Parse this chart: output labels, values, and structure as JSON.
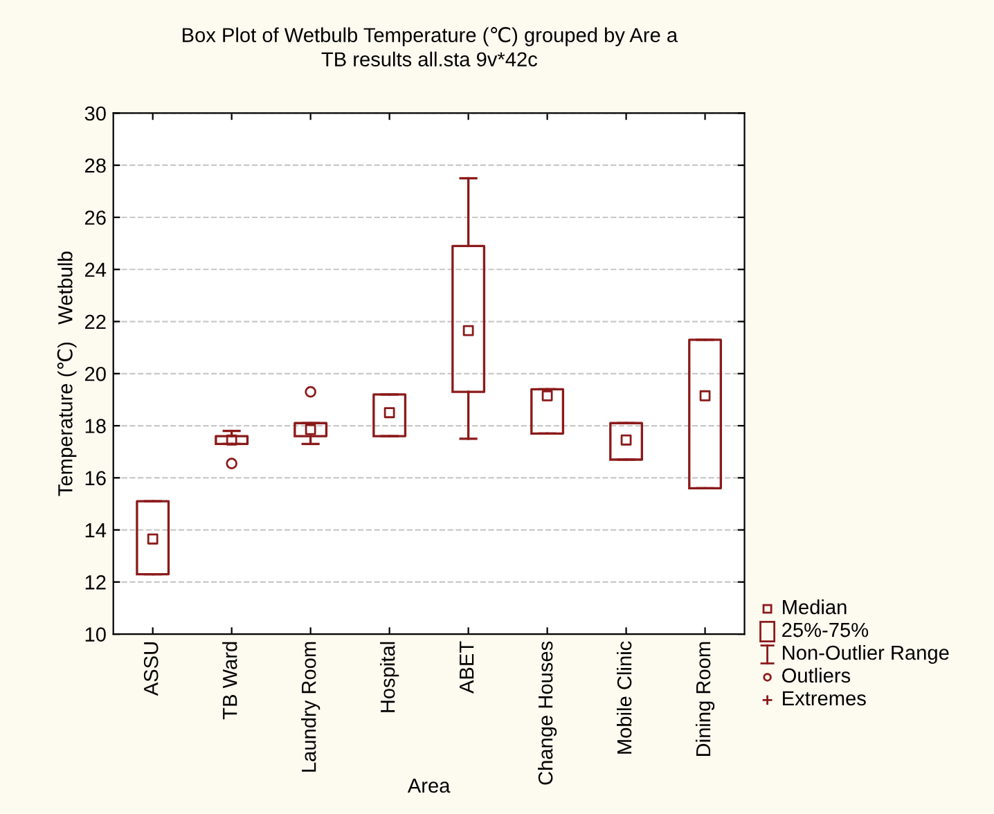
{
  "chart_data": {
    "type": "box",
    "title": "Box Plot of Wetbulb Temperature (℃) grouped by Are a",
    "subtitle": "TB results all.sta 9v*42c",
    "xlabel": "Area",
    "ylabel": "Temperature (℃)   Wetbulb",
    "categories": [
      "ASSU",
      "TB Ward",
      "Laundry Room",
      "Hospital",
      "ABET",
      "Change Houses",
      "Mobile Clinic",
      "Dining Room"
    ],
    "color": "#8b1a1a",
    "boxes": [
      {
        "low": 12.3,
        "q1": 12.3,
        "median": 13.65,
        "q3": 15.1,
        "high": 15.1
      },
      {
        "low": 17.3,
        "q1": 17.3,
        "median": 17.45,
        "q3": 17.6,
        "high": 17.8,
        "outliers": [
          16.55
        ]
      },
      {
        "low": 17.3,
        "q1": 17.6,
        "median": 17.85,
        "q3": 18.1,
        "high": 18.1,
        "outliers": [
          19.3
        ]
      },
      {
        "low": 17.6,
        "q1": 17.6,
        "median": 18.5,
        "q3": 19.2,
        "high": 19.2
      },
      {
        "low": 17.5,
        "q1": 19.3,
        "median": 21.65,
        "q3": 24.9,
        "high": 27.5
      },
      {
        "low": 17.7,
        "q1": 17.7,
        "median": 19.15,
        "q3": 19.4,
        "high": 19.4
      },
      {
        "low": 16.7,
        "q1": 16.7,
        "median": 17.45,
        "q3": 18.1,
        "high": 18.1
      },
      {
        "low": 15.6,
        "q1": 15.6,
        "median": 19.15,
        "q3": 21.3,
        "high": 21.3
      }
    ],
    "ylim": [
      10,
      30
    ],
    "yticks": [
      10,
      12,
      14,
      16,
      18,
      20,
      22,
      24,
      26,
      28,
      30
    ],
    "grid": "y",
    "annotations": [
      "Median",
      "25%-75%",
      "Non-Outlier Range",
      "Outliers",
      "Extremes"
    ]
  }
}
